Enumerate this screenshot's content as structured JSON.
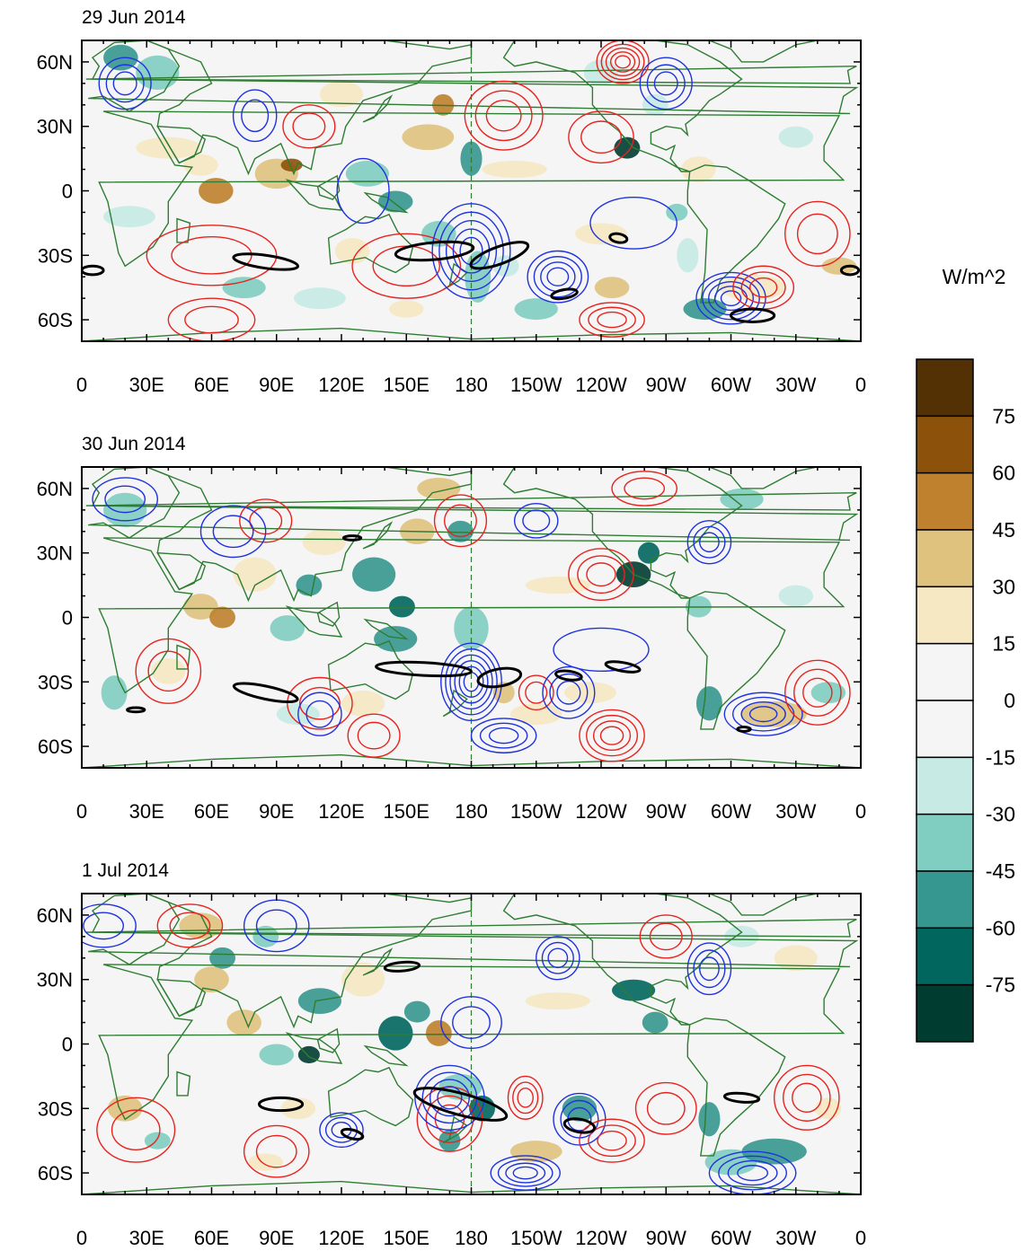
{
  "figure": {
    "panels": [
      {
        "title": "29 Jun 2014"
      },
      {
        "title": "30 Jun 2014"
      },
      {
        "title": "1 Jul 2014"
      }
    ],
    "lon_labels": [
      "0",
      "30E",
      "60E",
      "90E",
      "120E",
      "150E",
      "180",
      "150W",
      "120W",
      "90W",
      "60W",
      "30W",
      "0"
    ],
    "lat_labels": [
      "60N",
      "30N",
      "0",
      "30S",
      "60S"
    ],
    "colorbar": {
      "units": "W/m^2",
      "labels": [
        "75",
        "60",
        "45",
        "30",
        "15",
        "0",
        "-15",
        "-30",
        "-45",
        "-60",
        "-75"
      ],
      "colors": [
        "#543005",
        "#8c510a",
        "#bf812d",
        "#dfc27d",
        "#f6e8c3",
        "#f5f5f5",
        "#f5f5f5",
        "#c7eae5",
        "#80cdc1",
        "#35978f",
        "#01665e",
        "#003c30"
      ]
    },
    "colors": {
      "coast": "#2e7d32",
      "positive_contour": "#e8231e",
      "negative_contour": "#1f32e0",
      "significance_contour": "#000000"
    }
  }
}
